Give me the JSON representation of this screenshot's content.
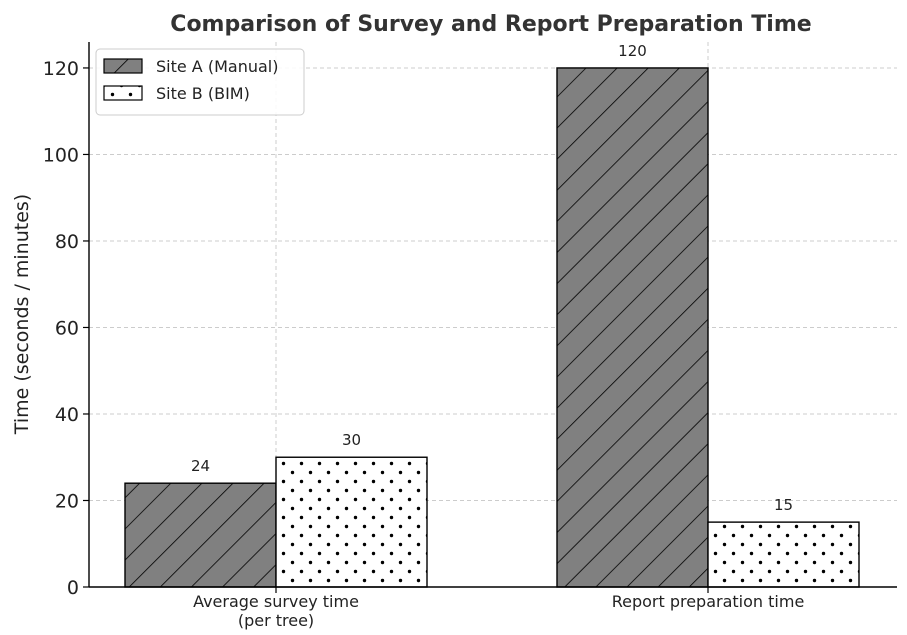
{
  "chart_data": {
    "type": "bar",
    "title": "Comparison of Survey and Report Preparation Time",
    "ylabel": "Time (seconds / minutes)",
    "xlabel": "",
    "categories": [
      [
        "Average survey time",
        "(per tree)"
      ],
      [
        "Report preparation time"
      ]
    ],
    "series": [
      {
        "name": "Site A (Manual)",
        "values": [
          24,
          120
        ],
        "fill": "#808080",
        "pattern": "hatch-diagonal"
      },
      {
        "name": "Site B (BIM)",
        "values": [
          30,
          15
        ],
        "fill": "#ffffff",
        "pattern": "dots"
      }
    ],
    "ylim": [
      0,
      126
    ],
    "yticks": [
      0,
      20,
      40,
      60,
      80,
      100,
      120
    ],
    "grid": true,
    "legend_position": "top-left",
    "data_labels": true
  }
}
